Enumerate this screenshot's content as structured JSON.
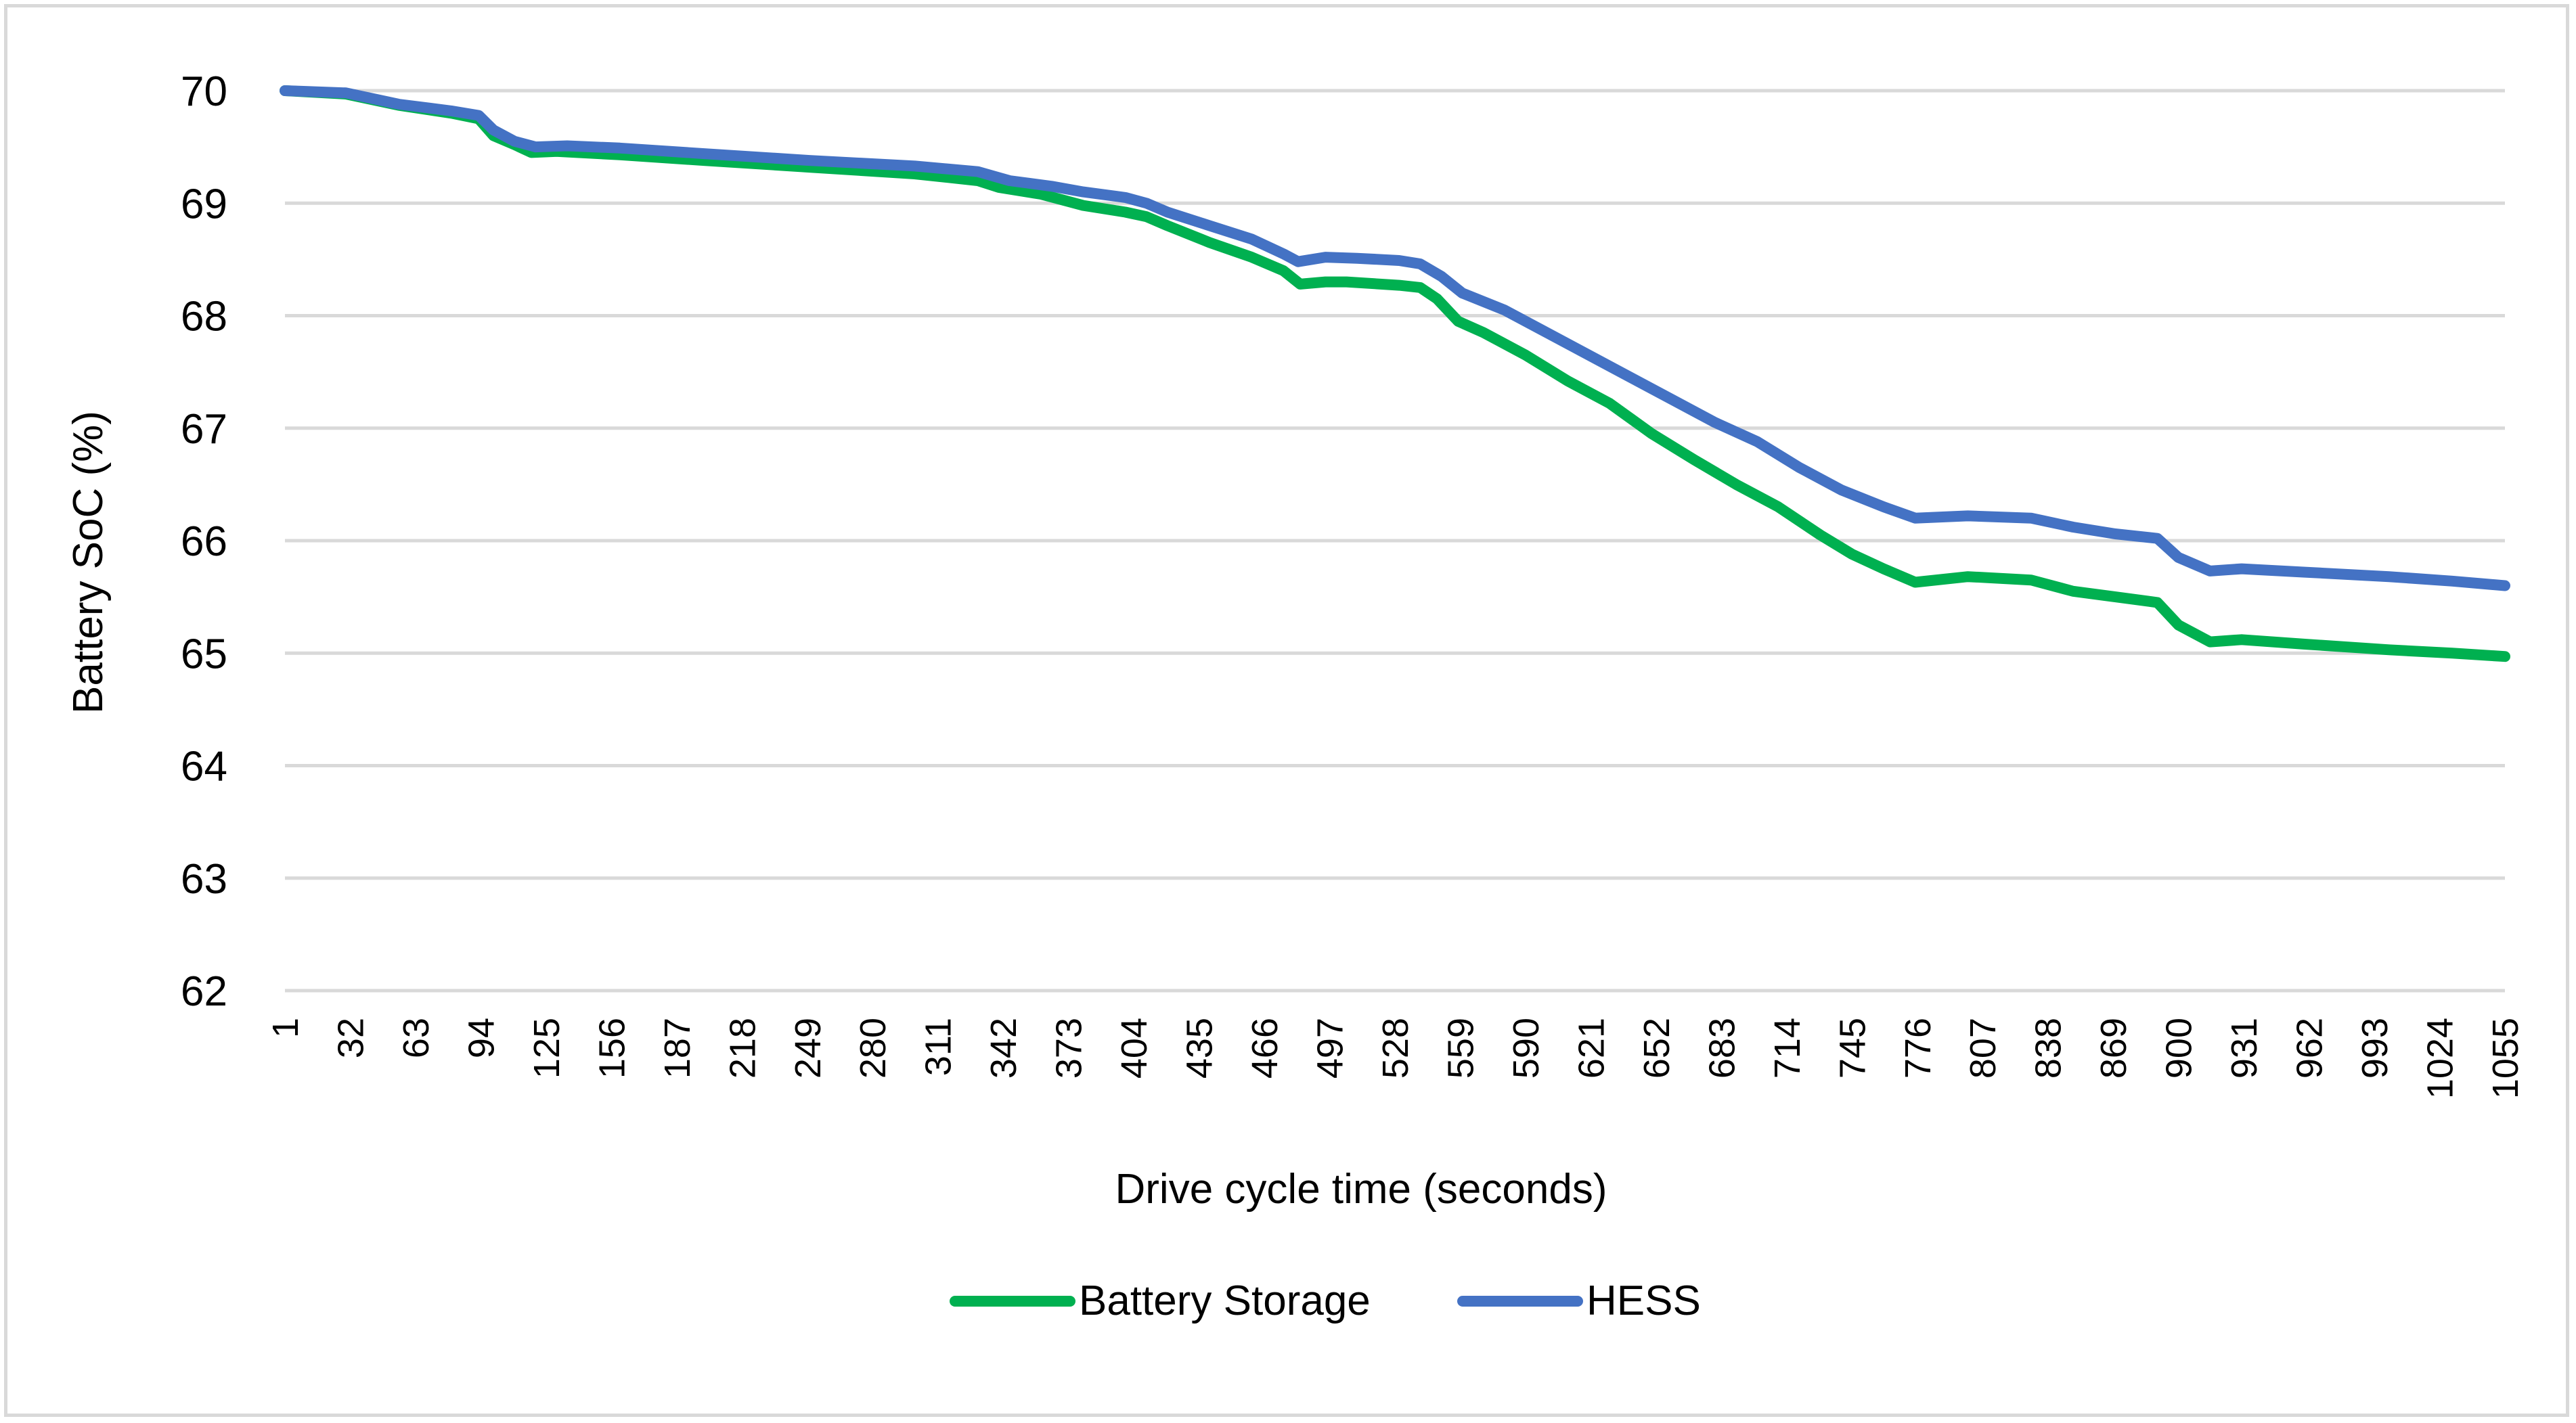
{
  "chart_data": {
    "type": "line",
    "title": "",
    "xlabel": "Drive cycle time (seconds)",
    "ylabel": "Battery SoC (%)",
    "xlim": [
      1,
      1055
    ],
    "ylim": [
      62,
      70
    ],
    "y_ticks": [
      62,
      63,
      64,
      65,
      66,
      67,
      68,
      69,
      70
    ],
    "x_tick_labels": [
      "1",
      "32",
      "63",
      "94",
      "125",
      "156",
      "187",
      "218",
      "249",
      "280",
      "311",
      "342",
      "373",
      "404",
      "435",
      "466",
      "497",
      "528",
      "559",
      "590",
      "621",
      "652",
      "683",
      "714",
      "745",
      "776",
      "807",
      "838",
      "869",
      "900",
      "931",
      "962",
      "993",
      "1024",
      "1055"
    ],
    "grid": true,
    "legend_position": "bottom-center",
    "series": [
      {
        "name": "Battery Storage",
        "color": "#00b050",
        "points": [
          [
            1,
            70.0
          ],
          [
            30,
            69.97
          ],
          [
            55,
            69.87
          ],
          [
            80,
            69.8
          ],
          [
            93,
            69.75
          ],
          [
            100,
            69.6
          ],
          [
            110,
            69.52
          ],
          [
            118,
            69.45
          ],
          [
            130,
            69.46
          ],
          [
            160,
            69.43
          ],
          [
            200,
            69.38
          ],
          [
            250,
            69.32
          ],
          [
            300,
            69.26
          ],
          [
            330,
            69.2
          ],
          [
            340,
            69.14
          ],
          [
            360,
            69.08
          ],
          [
            380,
            68.98
          ],
          [
            400,
            68.92
          ],
          [
            410,
            68.88
          ],
          [
            420,
            68.8
          ],
          [
            440,
            68.65
          ],
          [
            460,
            68.52
          ],
          [
            475,
            68.4
          ],
          [
            483,
            68.28
          ],
          [
            495,
            68.3
          ],
          [
            505,
            68.3
          ],
          [
            530,
            68.27
          ],
          [
            540,
            68.25
          ],
          [
            548,
            68.15
          ],
          [
            558,
            67.95
          ],
          [
            570,
            67.85
          ],
          [
            590,
            67.65
          ],
          [
            610,
            67.42
          ],
          [
            630,
            67.22
          ],
          [
            650,
            66.95
          ],
          [
            670,
            66.72
          ],
          [
            690,
            66.5
          ],
          [
            710,
            66.3
          ],
          [
            730,
            66.05
          ],
          [
            745,
            65.88
          ],
          [
            760,
            65.75
          ],
          [
            775,
            65.63
          ],
          [
            800,
            65.68
          ],
          [
            830,
            65.65
          ],
          [
            850,
            65.55
          ],
          [
            870,
            65.5
          ],
          [
            890,
            65.45
          ],
          [
            900,
            65.25
          ],
          [
            915,
            65.1
          ],
          [
            930,
            65.12
          ],
          [
            960,
            65.08
          ],
          [
            1000,
            65.03
          ],
          [
            1030,
            65.0
          ],
          [
            1055,
            64.97
          ]
        ]
      },
      {
        "name": "HESS",
        "color": "#4472c4",
        "points": [
          [
            1,
            70.0
          ],
          [
            30,
            69.98
          ],
          [
            55,
            69.88
          ],
          [
            80,
            69.82
          ],
          [
            93,
            69.78
          ],
          [
            100,
            69.65
          ],
          [
            110,
            69.55
          ],
          [
            120,
            69.5
          ],
          [
            135,
            69.51
          ],
          [
            160,
            69.49
          ],
          [
            200,
            69.44
          ],
          [
            250,
            69.38
          ],
          [
            300,
            69.33
          ],
          [
            330,
            69.28
          ],
          [
            345,
            69.2
          ],
          [
            365,
            69.15
          ],
          [
            380,
            69.1
          ],
          [
            400,
            69.05
          ],
          [
            410,
            69.0
          ],
          [
            420,
            68.92
          ],
          [
            440,
            68.8
          ],
          [
            460,
            68.68
          ],
          [
            475,
            68.55
          ],
          [
            482,
            68.48
          ],
          [
            495,
            68.52
          ],
          [
            510,
            68.51
          ],
          [
            530,
            68.49
          ],
          [
            540,
            68.46
          ],
          [
            550,
            68.35
          ],
          [
            560,
            68.2
          ],
          [
            580,
            68.05
          ],
          [
            600,
            67.85
          ],
          [
            620,
            67.65
          ],
          [
            640,
            67.45
          ],
          [
            660,
            67.25
          ],
          [
            680,
            67.05
          ],
          [
            700,
            66.88
          ],
          [
            720,
            66.65
          ],
          [
            740,
            66.45
          ],
          [
            760,
            66.3
          ],
          [
            775,
            66.2
          ],
          [
            800,
            66.22
          ],
          [
            830,
            66.2
          ],
          [
            850,
            66.12
          ],
          [
            870,
            66.06
          ],
          [
            890,
            66.02
          ],
          [
            900,
            65.85
          ],
          [
            915,
            65.73
          ],
          [
            930,
            65.75
          ],
          [
            960,
            65.72
          ],
          [
            1000,
            65.68
          ],
          [
            1030,
            65.64
          ],
          [
            1055,
            65.6
          ]
        ]
      }
    ]
  }
}
